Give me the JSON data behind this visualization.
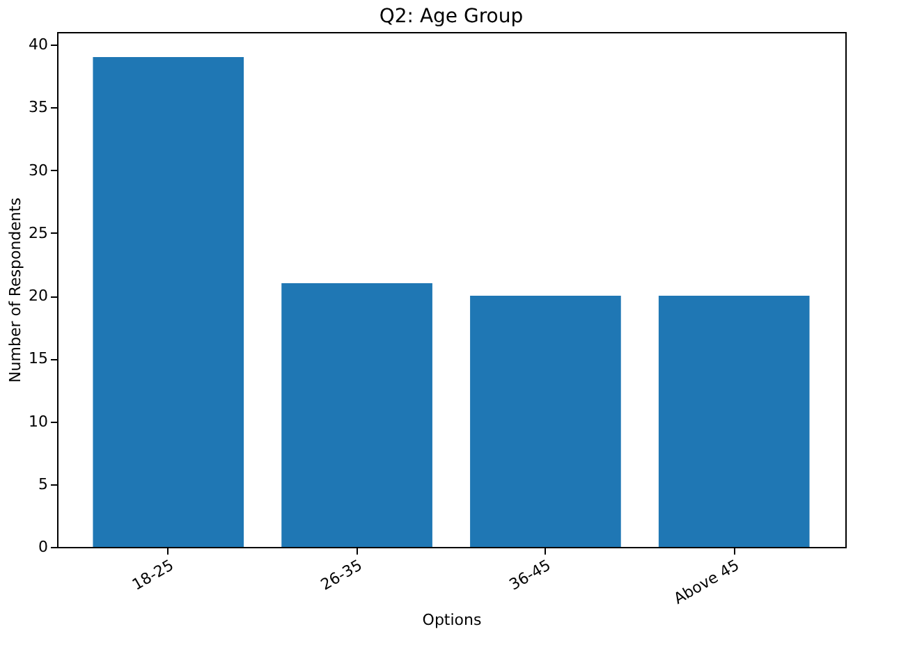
{
  "chart_data": {
    "type": "bar",
    "title": "Q2: Age Group",
    "xlabel": "Options",
    "ylabel": "Number of Respondents",
    "categories": [
      "18-25",
      "26-35",
      "36-45",
      "Above 45"
    ],
    "values": [
      39,
      21,
      20,
      20
    ],
    "color": "#1f77b4",
    "ylim": [
      0,
      41
    ],
    "yticks": [
      0,
      5,
      10,
      15,
      20,
      25,
      30,
      35,
      40
    ],
    "grid": false
  }
}
